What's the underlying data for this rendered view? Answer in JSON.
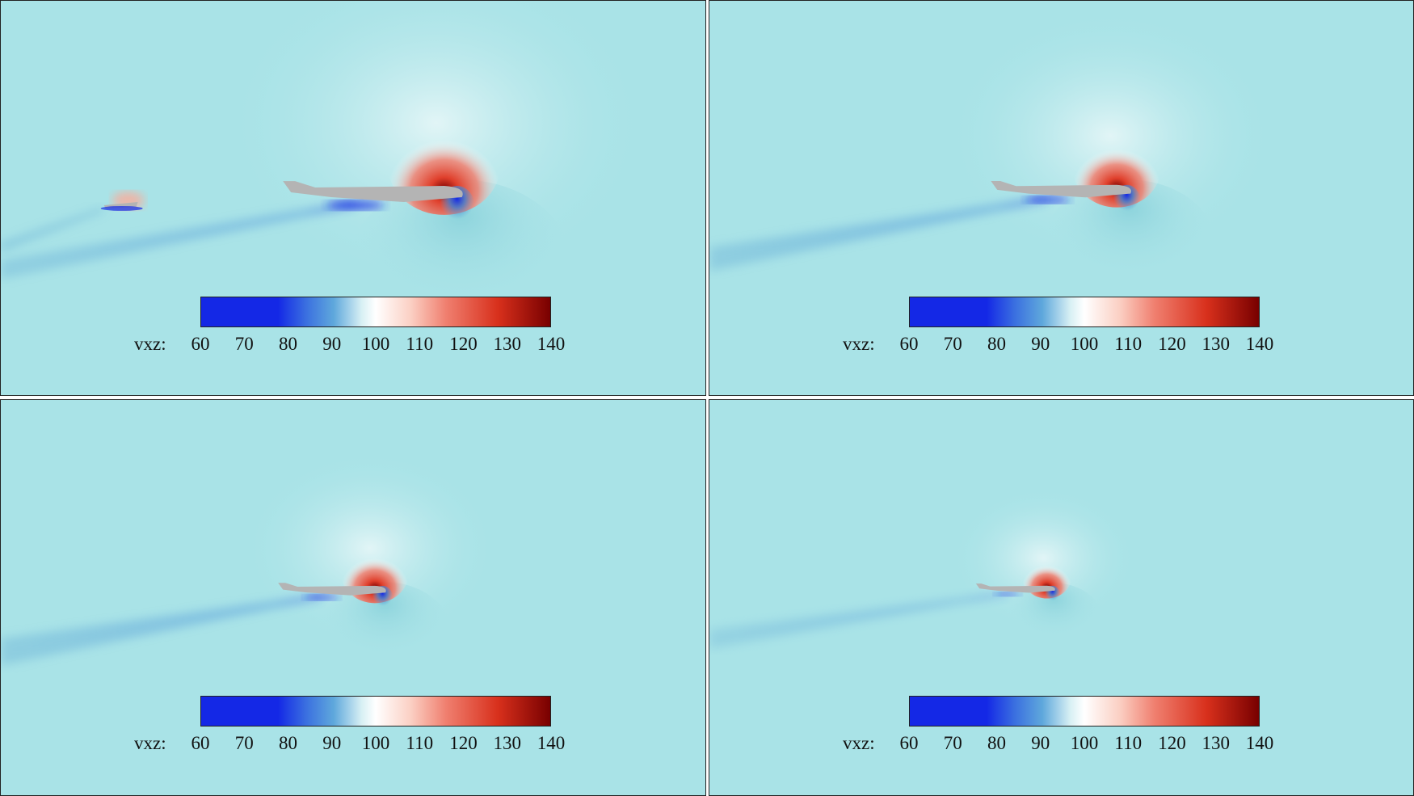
{
  "panels": [
    {
      "id": "top-left"
    },
    {
      "id": "top-right"
    },
    {
      "id": "bottom-left"
    },
    {
      "id": "bottom-right"
    }
  ],
  "colorbar": {
    "label": "vxz:",
    "ticks": [
      "60",
      "70",
      "80",
      "90",
      "100",
      "110",
      "120",
      "130",
      "140"
    ],
    "min": 60,
    "max": 140,
    "colors": {
      "low": "#1428e6",
      "mid_low": "#5fa8dc",
      "mid": "#ffffff",
      "mid_high": "#f08070",
      "high": "#780000",
      "background": "#a9e3e7",
      "aircraft": "#b4b4b4"
    }
  }
}
